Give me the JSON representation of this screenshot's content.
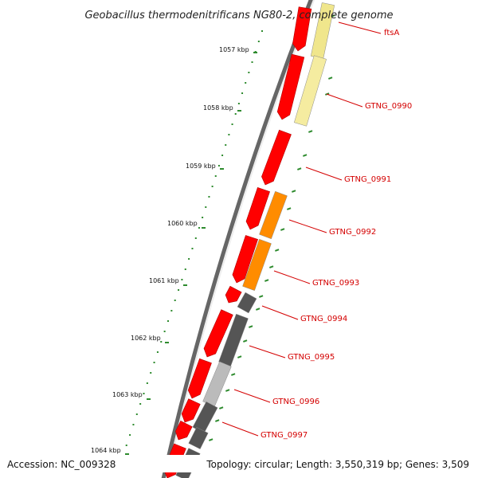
{
  "title": "Geobacillus thermodenitrificans NG80-2, complete genome",
  "accession": "Accession: NC_009328",
  "summary": "Topology: circular; Length: 3,550,319 bp; Genes: 3,509",
  "ticks": [
    "1057 kbp",
    "1058 kbp",
    "1059 kbp",
    "1060 kbp",
    "1061 kbp",
    "1062 kbp",
    "1063 kbp",
    "1064 kbp"
  ],
  "genes": [
    {
      "label": "ftsA",
      "color": "#f0e68c"
    },
    {
      "label": "GTNG_0990",
      "color": "#f5eca0"
    },
    {
      "label": "GTNG_0991",
      "color": "#ff0000"
    },
    {
      "label": "GTNG_0992",
      "color": "#ff8c00"
    },
    {
      "label": "GTNG_0993",
      "color": "#ff8c00"
    },
    {
      "label": "GTNG_0994",
      "color": "#555555"
    },
    {
      "label": "GTNG_0995",
      "color": "#555555"
    },
    {
      "label": "GTNG_0996",
      "color": "#bbbbbb"
    },
    {
      "label": "GTNG_0997",
      "color": "#555555"
    }
  ],
  "colors": {
    "forward_strand": "#ff0000",
    "backbone": "#777777",
    "tick_marks": "#2e8b2e",
    "label_text": "#d40000"
  }
}
